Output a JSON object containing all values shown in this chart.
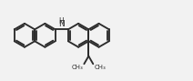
{
  "bg_color": "#f2f2f2",
  "line_color": "#2c2c2c",
  "lw": 1.35,
  "text_color": "#2c2c2c",
  "dpi": 100,
  "figsize": [
    2.12,
    0.89
  ],
  "NH_fontsize": 6.5,
  "me_fontsize": 5.0,
  "xlim": [
    0,
    10.6
  ],
  "ylim": [
    0.2,
    4.8
  ],
  "r": 0.68
}
